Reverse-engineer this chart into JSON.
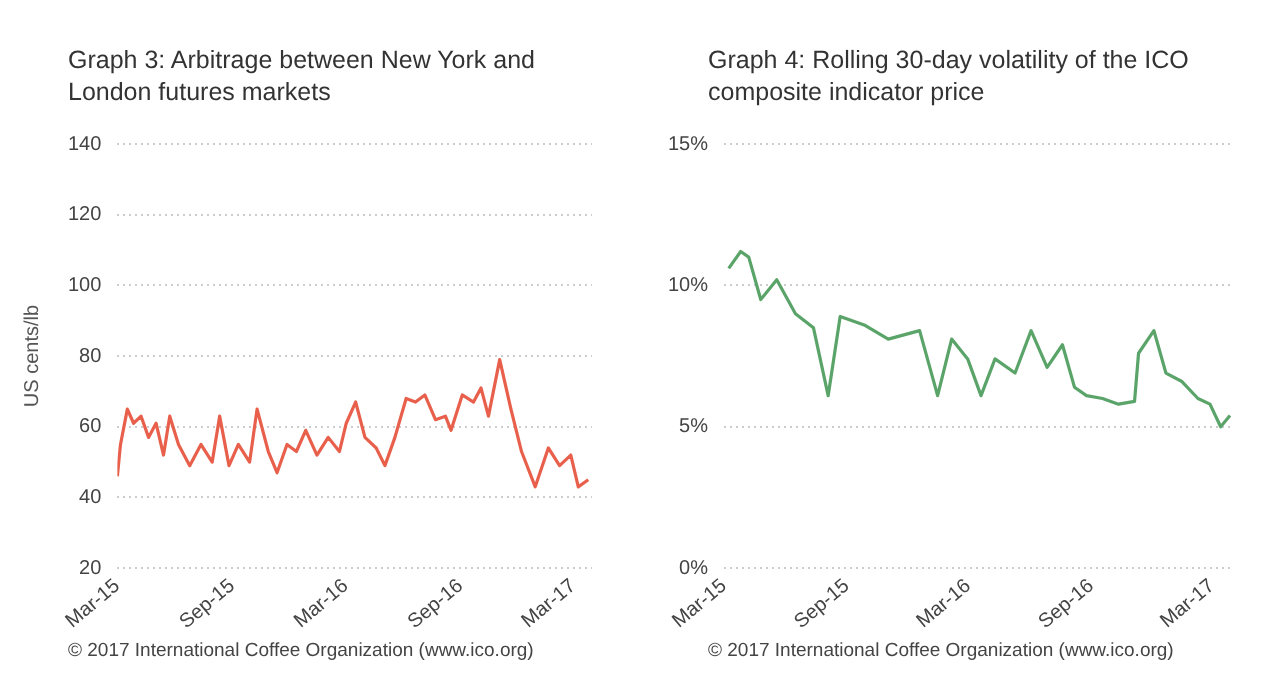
{
  "chart_data": [
    {
      "type": "line",
      "title": "Graph 3: Arbitrage between New York and London futures markets",
      "ylabel": "US cents/lb",
      "annotations": [
        "© 2017 International Coffee Organization (www.ico.org)"
      ],
      "x": [
        "2015-03-01",
        "2015-03-06",
        "2015-03-17",
        "2015-03-27",
        "2015-04-08",
        "2015-04-20",
        "2015-05-02",
        "2015-05-14",
        "2015-05-24",
        "2015-06-07",
        "2015-06-25",
        "2015-07-13",
        "2015-07-31",
        "2015-08-12",
        "2015-08-27",
        "2015-09-11",
        "2015-09-29",
        "2015-10-11",
        "2015-10-29",
        "2015-11-12",
        "2015-11-28",
        "2015-12-13",
        "2015-12-28",
        "2016-01-15",
        "2016-02-02",
        "2016-02-20",
        "2016-03-02",
        "2016-03-17",
        "2016-04-01",
        "2016-04-19",
        "2016-05-03",
        "2016-05-19",
        "2016-06-06",
        "2016-06-21",
        "2016-07-06",
        "2016-07-23",
        "2016-08-08",
        "2016-08-17",
        "2016-09-04",
        "2016-09-22",
        "2016-10-04",
        "2016-10-16",
        "2016-11-03",
        "2016-11-21",
        "2016-12-08",
        "2016-12-30",
        "2017-01-20",
        "2017-02-07",
        "2017-02-25",
        "2017-03-09",
        "2017-03-25"
      ],
      "series": [
        {
          "color": "#e8604c",
          "values": [
            46,
            55,
            65,
            61,
            63,
            57,
            61,
            52,
            63,
            55,
            49,
            55,
            50,
            63,
            49,
            55,
            50,
            65,
            53,
            47,
            55,
            53,
            59,
            52,
            57,
            53,
            61,
            67,
            57,
            54,
            49,
            57,
            68,
            67,
            69,
            62,
            63,
            59,
            69,
            67,
            71,
            63,
            79,
            65,
            53,
            43,
            54,
            49,
            52,
            43,
            45
          ]
        }
      ],
      "xlim": [
        "2015-03-01",
        "2017-03-31"
      ],
      "xticks": [
        {
          "value": "2015-03-01",
          "label": "Mar-15"
        },
        {
          "value": "2015-09-01",
          "label": "Sep-15"
        },
        {
          "value": "2016-03-01",
          "label": "Mar-16"
        },
        {
          "value": "2016-09-01",
          "label": "Sep-16"
        },
        {
          "value": "2017-03-01",
          "label": "Mar-17"
        }
      ],
      "ylim": [
        20,
        140
      ],
      "yticks": [
        20,
        40,
        60,
        80,
        100,
        120,
        140
      ],
      "grid": "y",
      "legend": false,
      "marker": "none",
      "line_style": "solid"
    },
    {
      "type": "line",
      "title": "Graph 4: Rolling 30-day volatility of the ICO composite indicator price",
      "annotations": [
        "© 2017 International Coffee Organization (www.ico.org)"
      ],
      "x": [
        "2015-03-08",
        "2015-03-26",
        "2015-04-07",
        "2015-04-25",
        "2015-05-19",
        "2015-06-16",
        "2015-07-13",
        "2015-08-04",
        "2015-08-22",
        "2015-09-27",
        "2015-11-02",
        "2015-12-19",
        "2016-01-15",
        "2016-02-05",
        "2016-02-29",
        "2016-03-20",
        "2016-04-10",
        "2016-05-10",
        "2016-06-03",
        "2016-06-27",
        "2016-07-20",
        "2016-08-07",
        "2016-08-25",
        "2016-09-18",
        "2016-10-12",
        "2016-11-05",
        "2016-11-11",
        "2016-12-04",
        "2016-12-22",
        "2017-01-15",
        "2017-02-08",
        "2017-02-26",
        "2017-03-14",
        "2017-03-28"
      ],
      "series": [
        {
          "color": "#5aa469",
          "values": [
            10.6,
            11.2,
            11,
            9.5,
            10.2,
            9,
            8.5,
            6.1,
            8.9,
            8.6,
            8.1,
            8.4,
            6.1,
            8.1,
            7.4,
            6.1,
            7.4,
            6.9,
            8.4,
            7.1,
            7.9,
            6.4,
            6.1,
            6,
            5.8,
            5.9,
            7.6,
            8.4,
            6.9,
            6.6,
            6,
            5.8,
            5,
            5.4
          ]
        }
      ],
      "xlim": [
        "2015-03-01",
        "2017-03-31"
      ],
      "xticks": [
        {
          "value": "2015-03-01",
          "label": "Mar-15"
        },
        {
          "value": "2015-09-01",
          "label": "Sep-15"
        },
        {
          "value": "2016-03-01",
          "label": "Mar-16"
        },
        {
          "value": "2016-09-01",
          "label": "Sep-16"
        },
        {
          "value": "2017-03-01",
          "label": "Mar-17"
        }
      ],
      "ylim": [
        0,
        15
      ],
      "yticks": [
        {
          "value": 0,
          "label": "0%"
        },
        {
          "value": 5,
          "label": "5%"
        },
        {
          "value": 10,
          "label": "10%"
        },
        {
          "value": 15,
          "label": "15%"
        }
      ],
      "grid": "y",
      "legend": false,
      "marker": "none",
      "line_style": "solid"
    }
  ]
}
